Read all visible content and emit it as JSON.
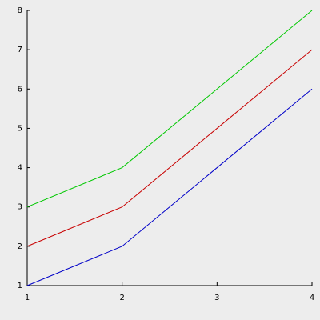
{
  "chart_data": {
    "type": "line",
    "x": [
      1,
      2,
      3,
      4
    ],
    "series": [
      {
        "color": "#0000c8",
        "values": [
          1,
          2,
          4,
          6
        ]
      },
      {
        "color": "#c80000",
        "values": [
          2,
          3,
          5,
          7
        ]
      },
      {
        "color": "#00c800",
        "values": [
          3,
          4,
          6,
          8
        ]
      }
    ],
    "xlim": [
      1,
      4
    ],
    "xticks": [
      1,
      2,
      3,
      4
    ],
    "ylim": [
      1,
      8
    ],
    "yticks": [
      1,
      2,
      3,
      4,
      5,
      6,
      7,
      8
    ],
    "grid": false
  }
}
